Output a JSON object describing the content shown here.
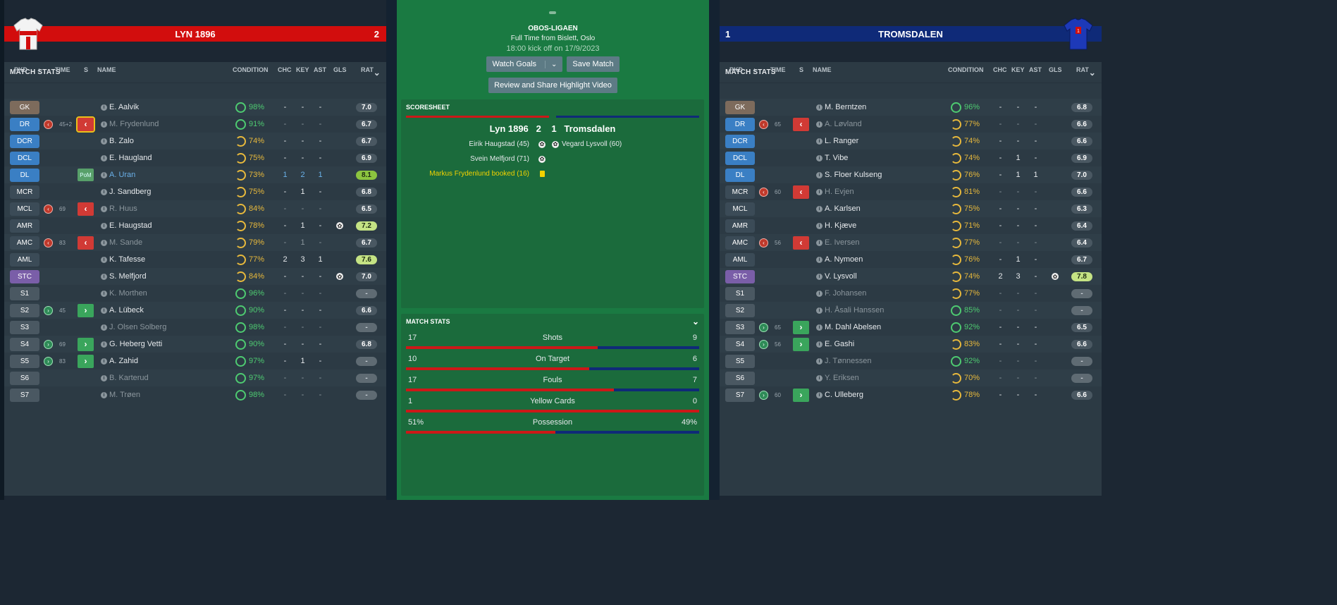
{
  "colors": {
    "home": "#d20d0d",
    "away": "#0f2a78",
    "pitch": "#1a7a42"
  },
  "home": {
    "name": "LYN 1896",
    "score": "2",
    "shirt": "home-shirt-icon"
  },
  "away": {
    "name": "TROMSDALEN",
    "score": "1",
    "shirt": "away-shirt-icon"
  },
  "panel": {
    "title": "MATCH STATS",
    "cols": {
      "pkd": "PKD",
      "time": "TIME",
      "s": "S",
      "name": "NAME",
      "condition": "CONDITION",
      "chc": "CHC",
      "key": "KEY",
      "ast": "AST",
      "gls": "GLS",
      "rat": "RAT"
    }
  },
  "home_players": [
    {
      "pos": "GK",
      "name": "E. Aalvik",
      "cond": "98%",
      "chc": "-",
      "key": "-",
      "ast": "-",
      "rat": "7.0"
    },
    {
      "pos": "DR",
      "time": "45+2",
      "name": "M. Frydenlund",
      "cond": "91%",
      "chc": "-",
      "key": "-",
      "ast": "-",
      "rat": "6.7"
    },
    {
      "pos": "DCR",
      "name": "B. Zalo",
      "cond": "74%",
      "chc": "-",
      "key": "-",
      "ast": "-",
      "rat": "6.7"
    },
    {
      "pos": "DCL",
      "name": "E. Haugland",
      "cond": "75%",
      "chc": "-",
      "key": "-",
      "ast": "-",
      "rat": "6.9"
    },
    {
      "pos": "DL",
      "name": "A. Uran",
      "cond": "73%",
      "chc": "1",
      "key": "2",
      "ast": "1",
      "rat": "8.1",
      "pom": "PoM"
    },
    {
      "pos": "MCR",
      "name": "J. Sandberg",
      "cond": "75%",
      "chc": "-",
      "key": "1",
      "ast": "-",
      "rat": "6.8"
    },
    {
      "pos": "MCL",
      "time": "69",
      "name": "R. Huus",
      "cond": "84%",
      "chc": "-",
      "key": "-",
      "ast": "-",
      "rat": "6.5"
    },
    {
      "pos": "AMR",
      "name": "E. Haugstad",
      "cond": "78%",
      "chc": "-",
      "key": "1",
      "ast": "-",
      "rat": "7.2"
    },
    {
      "pos": "AMC",
      "time": "83",
      "name": "M. Sande",
      "cond": "79%",
      "chc": "-",
      "key": "1",
      "ast": "-",
      "rat": "6.7"
    },
    {
      "pos": "AML",
      "name": "K. Tafesse",
      "cond": "77%",
      "chc": "2",
      "key": "3",
      "ast": "1",
      "rat": "7.6"
    },
    {
      "pos": "STC",
      "name": "S. Melfjord",
      "cond": "84%",
      "chc": "-",
      "key": "-",
      "ast": "-",
      "rat": "7.0"
    },
    {
      "pos": "S1",
      "name": "K. Morthen",
      "cond": "96%",
      "chc": "-",
      "key": "-",
      "ast": "-",
      "rat": "-"
    },
    {
      "pos": "S2",
      "time": "45",
      "name": "A. Lübeck",
      "cond": "90%",
      "chc": "-",
      "key": "-",
      "ast": "-",
      "rat": "6.6"
    },
    {
      "pos": "S3",
      "name": "J. Olsen Solberg",
      "cond": "98%",
      "chc": "-",
      "key": "-",
      "ast": "-",
      "rat": "-"
    },
    {
      "pos": "S4",
      "time": "69",
      "name": "G. Heberg Vetti",
      "cond": "90%",
      "chc": "-",
      "key": "-",
      "ast": "-",
      "rat": "6.8"
    },
    {
      "pos": "S5",
      "time": "83",
      "name": "A. Zahid",
      "cond": "97%",
      "chc": "-",
      "key": "1",
      "ast": "-",
      "rat": "-"
    },
    {
      "pos": "S6",
      "name": "B. Karterud",
      "cond": "97%",
      "chc": "-",
      "key": "-",
      "ast": "-",
      "rat": "-"
    },
    {
      "pos": "S7",
      "name": "M. Trøen",
      "cond": "98%",
      "chc": "-",
      "key": "-",
      "ast": "-",
      "rat": "-"
    }
  ],
  "away_players": [
    {
      "pos": "GK",
      "name": "M. Berntzen",
      "cond": "96%",
      "chc": "-",
      "key": "-",
      "ast": "-",
      "rat": "6.8"
    },
    {
      "pos": "DR",
      "time": "65",
      "name": "A. Løvland",
      "cond": "77%",
      "chc": "-",
      "key": "-",
      "ast": "-",
      "rat": "6.6"
    },
    {
      "pos": "DCR",
      "name": "L. Ranger",
      "cond": "74%",
      "chc": "-",
      "key": "-",
      "ast": "-",
      "rat": "6.6"
    },
    {
      "pos": "DCL",
      "name": "T. Vibe",
      "cond": "74%",
      "chc": "-",
      "key": "1",
      "ast": "-",
      "rat": "6.9"
    },
    {
      "pos": "DL",
      "name": "S. Floer Kulseng",
      "cond": "76%",
      "chc": "-",
      "key": "1",
      "ast": "1",
      "rat": "7.0"
    },
    {
      "pos": "MCR",
      "time": "60",
      "name": "H. Evjen",
      "cond": "81%",
      "chc": "-",
      "key": "-",
      "ast": "-",
      "rat": "6.6"
    },
    {
      "pos": "MCL",
      "name": "A. Karlsen",
      "cond": "75%",
      "chc": "-",
      "key": "-",
      "ast": "-",
      "rat": "6.3"
    },
    {
      "pos": "AMR",
      "name": "H. Kjæve",
      "cond": "71%",
      "chc": "-",
      "key": "-",
      "ast": "-",
      "rat": "6.4"
    },
    {
      "pos": "AMC",
      "time": "56",
      "name": "E. Iversen",
      "cond": "77%",
      "chc": "-",
      "key": "-",
      "ast": "-",
      "rat": "6.4"
    },
    {
      "pos": "AML",
      "name": "A. Nymoen",
      "cond": "76%",
      "chc": "-",
      "key": "1",
      "ast": "-",
      "rat": "6.7"
    },
    {
      "pos": "STC",
      "name": "V. Lysvoll",
      "cond": "74%",
      "chc": "2",
      "key": "3",
      "ast": "-",
      "rat": "7.8"
    },
    {
      "pos": "S1",
      "name": "F. Johansen",
      "cond": "77%",
      "chc": "-",
      "key": "-",
      "ast": "-",
      "rat": "-"
    },
    {
      "pos": "S2",
      "name": "H. Åsali Hanssen",
      "cond": "85%",
      "chc": "-",
      "key": "-",
      "ast": "-",
      "rat": "-"
    },
    {
      "pos": "S3",
      "time": "65",
      "name": "M. Dahl Abelsen",
      "cond": "92%",
      "chc": "-",
      "key": "-",
      "ast": "-",
      "rat": "6.5"
    },
    {
      "pos": "S4",
      "time": "56",
      "name": "E. Gashi",
      "cond": "83%",
      "chc": "-",
      "key": "-",
      "ast": "-",
      "rat": "6.6"
    },
    {
      "pos": "S5",
      "name": "J. Tønnessen",
      "cond": "92%",
      "chc": "-",
      "key": "-",
      "ast": "-",
      "rat": "-"
    },
    {
      "pos": "S6",
      "name": "Y. Eriksen",
      "cond": "70%",
      "chc": "-",
      "key": "-",
      "ast": "-",
      "rat": "-"
    },
    {
      "pos": "S7",
      "time": "60",
      "name": "C. Ulleberg",
      "cond": "78%",
      "chc": "-",
      "key": "-",
      "ast": "-",
      "rat": "6.6"
    }
  ],
  "center": {
    "competition": "OBOS-LIGAEN",
    "status": "Full Time from Bislett, Oslo",
    "kickoff": "18:00 kick off on 17/9/2023",
    "watch_goals": "Watch Goals",
    "save_match": "Save Match",
    "review": "Review and Share Highlight Video"
  },
  "scoresheet": {
    "title": "SCORESHEET",
    "home_team": "Lyn 1896",
    "home_goals": "2",
    "away_goals": "1",
    "away_team": "Tromsdalen",
    "events": [
      {
        "left": "Eirik Haugstad (45)",
        "right": "Vegard Lysvoll (60)"
      },
      {
        "left": "Svein Melfjord (71)",
        "right": ""
      },
      {
        "left": "Markus Frydenlund booked (16)",
        "right": ""
      }
    ]
  },
  "match_stats": {
    "title": "MATCH STATS",
    "rows": [
      {
        "label": "Shots",
        "home": "17",
        "away": "9",
        "home_share": 0.654
      },
      {
        "label": "On Target",
        "home": "10",
        "away": "6",
        "home_share": 0.625
      },
      {
        "label": "Fouls",
        "home": "17",
        "away": "7",
        "home_share": 0.708
      },
      {
        "label": "Yellow Cards",
        "home": "1",
        "away": "0",
        "home_share": 1.0
      },
      {
        "label": "Possession",
        "home": "51%",
        "away": "49%",
        "home_share": 0.51
      }
    ]
  }
}
